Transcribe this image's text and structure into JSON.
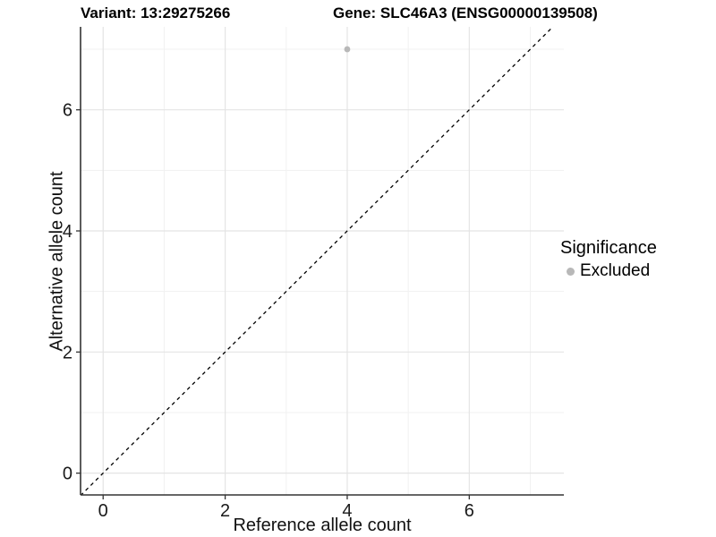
{
  "titles": {
    "left": "Variant: 13:29275266",
    "right": "Gene: SLC46A3 (ENSG00000139508)"
  },
  "chart_data": {
    "type": "scatter",
    "xlabel": "Reference allele count",
    "ylabel": "Alternative allele count",
    "xlim": [
      -0.37,
      7.55
    ],
    "ylim": [
      -0.36,
      7.37
    ],
    "x_ticks": [
      0,
      2,
      4,
      6
    ],
    "y_ticks": [
      0,
      2,
      4,
      6
    ],
    "x_minor_gridlines": [
      1,
      3,
      5,
      7
    ],
    "y_minor_gridlines": [
      1,
      3,
      5,
      7
    ],
    "grid": true,
    "legend_position": "right",
    "reference_line": {
      "style": "dashed",
      "slope": 1,
      "intercept": 0,
      "color": "#000000"
    },
    "series": [
      {
        "name": "Excluded",
        "color": "#b8b8b8",
        "points": [
          {
            "x": 4,
            "y": 7
          }
        ]
      }
    ],
    "legend": {
      "title": "Significance",
      "items": [
        {
          "label": "Excluded",
          "color": "#b8b8b8"
        }
      ]
    },
    "colors": {
      "background": "#ffffff",
      "grid_major": "#e4e4e4",
      "grid_minor": "#f1f1f1",
      "axis_line": "#333333",
      "tick_mark": "#333333",
      "tick_label": "#1a1a1a"
    }
  }
}
